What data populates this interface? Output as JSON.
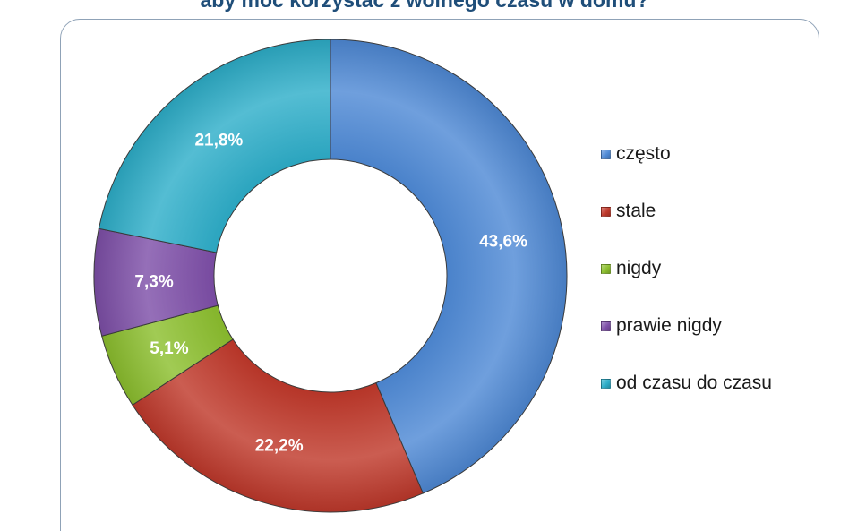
{
  "chart_data": {
    "type": "pie",
    "subtype": "donut",
    "title": "aby móc korzystać z wolnego czasu w domu?",
    "categories": [
      "często",
      "stale",
      "nigdy",
      "prawie nigdy",
      "od czasu do czasu"
    ],
    "values": [
      43.6,
      22.2,
      5.1,
      7.3,
      21.8
    ],
    "value_labels": [
      "43,6%",
      "22,2%",
      "5,1%",
      "7,3%",
      "21,8%"
    ],
    "unit": "%",
    "colors": [
      "#4f8ad6",
      "#c0392b",
      "#8cbf2e",
      "#7e4fa8",
      "#2eaec9"
    ],
    "legend_position": "right",
    "start_angle_deg": 0,
    "direction": "clockwise"
  }
}
